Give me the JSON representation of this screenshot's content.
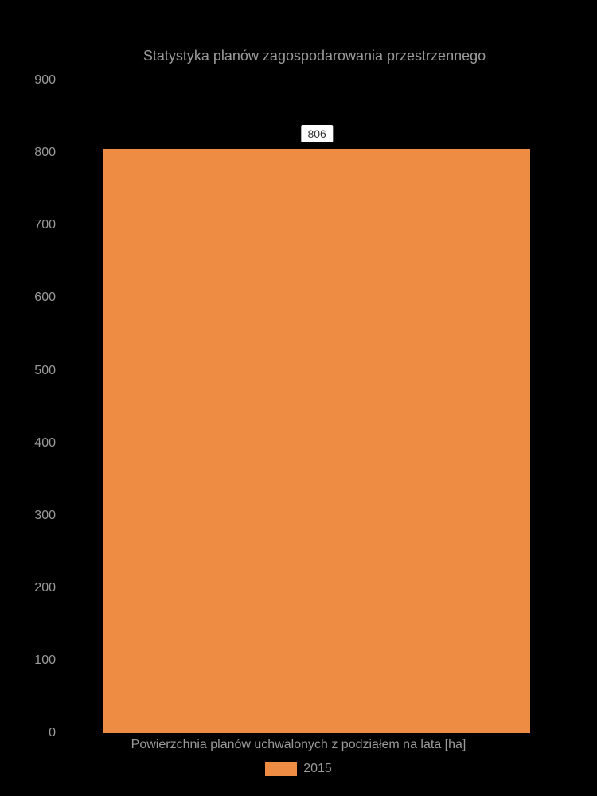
{
  "chart": {
    "type": "bar",
    "title": "Statystyka planów zagospodarowania przestrzennego",
    "title_fontsize": 18,
    "title_color": "#9a9a9a",
    "background_color": "#000000",
    "x_label": "Powierzchnia planów uchwalonych z podziałem na lata [ha]",
    "x_label_color": "#9a9a9a",
    "x_label_fontsize": 16,
    "ylim": [
      0,
      900
    ],
    "ytick_step": 100,
    "y_ticks": [
      "0",
      "100",
      "200",
      "300",
      "400",
      "500",
      "600",
      "700",
      "800",
      "900"
    ],
    "y_tick_color": "#9a9a9a",
    "y_tick_fontsize": 16,
    "bar": {
      "value": 806,
      "label": "806",
      "color": "#ed8c42",
      "width_percent": 85,
      "left_percent": 8
    },
    "bar_label_bg": "#ffffff",
    "bar_label_color": "#333333",
    "legend": {
      "label": "2015",
      "swatch_color": "#ed8c42",
      "label_color": "#9a9a9a"
    }
  }
}
